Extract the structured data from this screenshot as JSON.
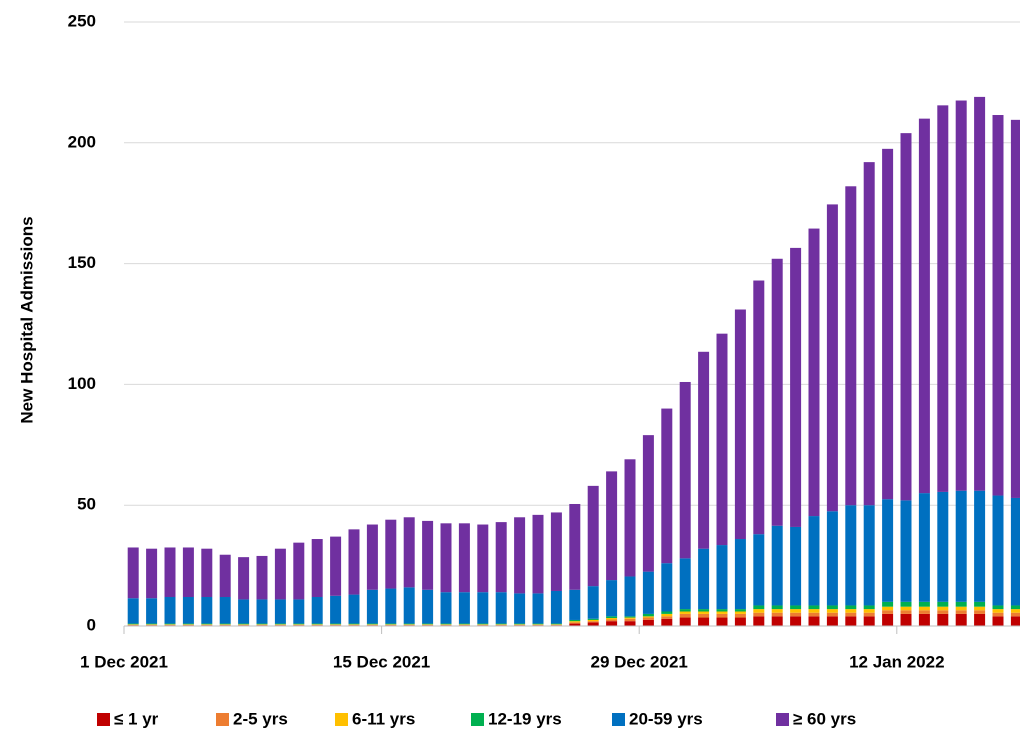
{
  "chart_data": {
    "type": "stacked_bar",
    "y_label": "New Hospital Admissions",
    "categories": [
      "1 Dec 2021",
      null,
      null,
      null,
      null,
      null,
      null,
      null,
      null,
      null,
      null,
      null,
      null,
      null,
      "15 Dec 2021",
      null,
      null,
      null,
      null,
      null,
      null,
      null,
      null,
      null,
      null,
      null,
      null,
      null,
      "29 Dec 2021",
      null,
      null,
      null,
      null,
      null,
      null,
      null,
      null,
      null,
      null,
      null,
      null,
      null,
      "12 Jan 2022",
      null,
      null,
      null,
      null,
      null,
      null
    ],
    "ylim": [
      0,
      250
    ],
    "yticks": [
      0,
      50,
      100,
      150,
      200,
      250
    ],
    "grid": true,
    "legend": "bottom",
    "series": [
      {
        "name": "≤ 1 yr",
        "color": "#c00000",
        "values": [
          0.3,
          0.3,
          0.3,
          0.3,
          0.3,
          0.3,
          0.3,
          0.3,
          0.3,
          0.3,
          0.3,
          0.3,
          0.3,
          0.3,
          0.3,
          0.3,
          0.3,
          0.3,
          0.3,
          0.3,
          0.3,
          0.3,
          0.3,
          0.3,
          1,
          1.5,
          2,
          2,
          2.5,
          3,
          3.5,
          3.5,
          3.5,
          3.5,
          4,
          4,
          4,
          4,
          4,
          4,
          4,
          5,
          5,
          5,
          5,
          5,
          5,
          4,
          4
        ]
      },
      {
        "name": "2-5 yrs",
        "color": "#ed7d31",
        "values": [
          0.2,
          0.2,
          0.2,
          0.2,
          0.2,
          0.2,
          0.2,
          0.2,
          0.2,
          0.2,
          0.2,
          0.2,
          0.2,
          0.2,
          0.2,
          0.2,
          0.2,
          0.2,
          0.2,
          0.2,
          0.2,
          0.2,
          0.2,
          0.2,
          0.5,
          0.5,
          0.7,
          1,
          1,
          1,
          1.5,
          1.5,
          1.5,
          1.5,
          1.5,
          1.5,
          1.5,
          1.5,
          1.5,
          1.5,
          1.5,
          1.5,
          1.5,
          1.5,
          1.5,
          1.5,
          1.5,
          1.5,
          1.5
        ]
      },
      {
        "name": "6-11 yrs",
        "color": "#ffc000",
        "values": [
          0.2,
          0.2,
          0.2,
          0.2,
          0.2,
          0.2,
          0.2,
          0.2,
          0.2,
          0.2,
          0.2,
          0.2,
          0.2,
          0.2,
          0.2,
          0.2,
          0.2,
          0.2,
          0.2,
          0.2,
          0.2,
          0.2,
          0.2,
          0.2,
          0.5,
          0.5,
          0.6,
          0.5,
          0.5,
          1,
          1,
          1,
          1,
          1,
          1.5,
          1.5,
          1.5,
          1.5,
          1.5,
          1.5,
          1.5,
          1.5,
          1.5,
          1.5,
          1.5,
          1.5,
          1.5,
          1.5,
          1.5
        ]
      },
      {
        "name": "12-19 yrs",
        "color": "#00b050",
        "values": [
          0.3,
          0.3,
          0.3,
          0.3,
          0.3,
          0.3,
          0.3,
          0.3,
          0.3,
          0.3,
          0.3,
          0.3,
          0.3,
          0.3,
          0.3,
          0.3,
          0.3,
          0.3,
          0.3,
          0.3,
          0.3,
          0.3,
          0.3,
          0.3,
          0.5,
          0.5,
          0.7,
          0.5,
          1,
          1,
          1,
          1,
          1,
          1,
          1.5,
          1.5,
          1.5,
          1.5,
          1.5,
          1.5,
          1.5,
          2,
          2,
          2,
          2,
          2,
          2,
          1.5,
          1.5
        ]
      },
      {
        "name": "20-59 yrs",
        "color": "#0070c0",
        "values": [
          10.5,
          10.5,
          11,
          11,
          11,
          11,
          10,
          10,
          10,
          10,
          11,
          11.5,
          12,
          14,
          14.5,
          15,
          14,
          13,
          13,
          13,
          13,
          12.5,
          12.5,
          13.5,
          12.5,
          13.5,
          15,
          16.5,
          17.5,
          20,
          21,
          25,
          26.5,
          29,
          29.5,
          33,
          32.5,
          37,
          39,
          41.5,
          41.5,
          42.5,
          42,
          45,
          45.5,
          46,
          46,
          45.5,
          44.5
        ]
      },
      {
        "name": "≥ 60 yrs",
        "color": "#7030a0",
        "values": [
          21,
          20.5,
          20.5,
          20.5,
          20,
          17.5,
          17.5,
          18,
          21,
          23.5,
          24,
          24.5,
          27,
          27,
          28.5,
          29,
          28.5,
          28.5,
          28.5,
          28,
          29,
          31.5,
          32.5,
          32.5,
          35.5,
          41.5,
          45,
          48.5,
          56.5,
          64,
          73,
          81.5,
          87.5,
          95,
          105,
          110.5,
          115.5,
          119,
          127,
          132,
          142,
          145,
          152,
          155,
          160,
          161.5,
          163,
          157.5,
          156.5
        ]
      }
    ]
  }
}
